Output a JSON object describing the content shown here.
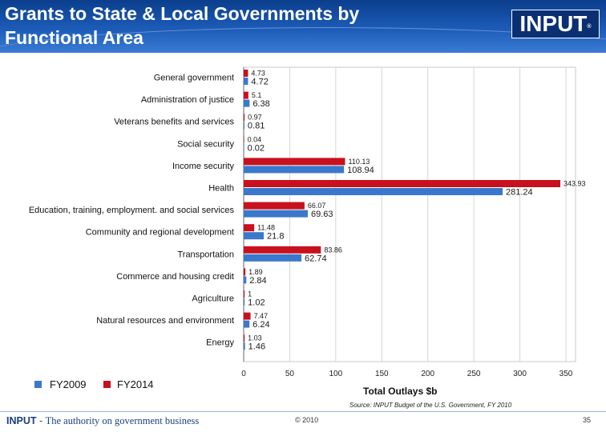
{
  "header": {
    "title": "Grants to State & Local Governments by\nFunctional Area",
    "logo_text": "INPUT",
    "logo_mark": "®"
  },
  "chart_data": {
    "type": "bar",
    "orientation": "horizontal",
    "categories": [
      "General government",
      "Administration of justice",
      "Veterans benefits and services",
      "Social security",
      "Income security",
      "Health",
      "Education, training, employment. and social services",
      "Community and regional development",
      "Transportation",
      "Commerce and housing credit",
      "Agriculture",
      "Natural resources and environment",
      "Energy"
    ],
    "series": [
      {
        "name": "FY2009",
        "color": "#3a78cc",
        "values": [
          4.72,
          6.38,
          0.81,
          0.02,
          108.94,
          281.24,
          69.63,
          21.8,
          62.74,
          2.84,
          1.02,
          6.24,
          1.46
        ],
        "labels": [
          "4.72",
          "6.38",
          "0.81",
          "0.02",
          "108.94",
          "281.24",
          "69.63",
          "21.8",
          "62.74",
          "2.84",
          "1.02",
          "6.24",
          "1.46"
        ]
      },
      {
        "name": "FY2014",
        "color": "#c8111e",
        "values": [
          4.73,
          5.1,
          0.97,
          0.04,
          110.13,
          343.93,
          66.07,
          11.48,
          83.86,
          1.89,
          1,
          7.47,
          1.03
        ],
        "labels": [
          "4.73",
          "5.1",
          "0.97",
          "0.04",
          "110.13",
          "343.93",
          "66.07",
          "11.48",
          "83.86",
          "1.89",
          "1",
          "7.47",
          "1.03"
        ]
      }
    ],
    "xlabel": "Total Outlays $b",
    "xlim": [
      0,
      350
    ],
    "xticks": [
      "0",
      "50",
      "100",
      "150",
      "200",
      "250",
      "300",
      "350"
    ],
    "grid": true,
    "legend": "bottom-left"
  },
  "source": "Source: INPUT Budget of the U.S. Government, FY 2010",
  "footer": {
    "brand_name": "INPUT",
    "brand_sep": " - ",
    "tagline": "The authority on government business",
    "copyright": "© 2010",
    "page_number": "35"
  }
}
